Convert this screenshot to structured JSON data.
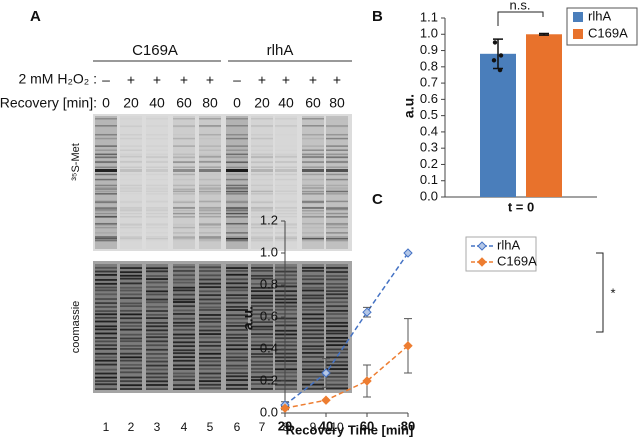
{
  "panel_a": {
    "label": "A",
    "groups": [
      "C169A",
      "rlhA"
    ],
    "treatment_label": "2 mM H₂O₂ :",
    "treatments": [
      "–",
      "+",
      "+",
      "+",
      "+",
      "–",
      "+",
      "+",
      "+",
      "+"
    ],
    "recovery_label": "Recovery [min]:",
    "recovery": [
      "0",
      "20",
      "40",
      "60",
      "80",
      "0",
      "20",
      "40",
      "60",
      "80"
    ],
    "gel_labels": [
      "³⁵S-Met",
      "coomassie"
    ],
    "lanes": [
      "1",
      "2",
      "3",
      "4",
      "5",
      "6",
      "7",
      "8",
      "9",
      "10"
    ]
  },
  "chart_data": [
    {
      "type": "bar",
      "label": "B",
      "ylabel": "a.u.",
      "categories": [
        "t = 0"
      ],
      "ylim": [
        0,
        1.1
      ],
      "yticks": [
        {
          "value": 0,
          "label": "0.0"
        },
        0.1,
        0.2,
        0.3,
        0.4,
        0.5,
        0.6,
        0.7,
        0.8,
        0.9,
        {
          "value": 1,
          "label": "1.0"
        },
        1.1
      ],
      "annotation": "n.s.",
      "legend": "upper right",
      "series": [
        {
          "name": "rlhA",
          "color": "#4a7ebb",
          "values": [
            0.88
          ],
          "errors": [
            0.09
          ],
          "points": [
            0.95,
            0.87,
            0.84,
            0.78
          ]
        },
        {
          "name": "C169A",
          "color": "#e8722c",
          "values": [
            1.0
          ],
          "errors": [
            0.005
          ]
        }
      ]
    },
    {
      "type": "line",
      "label": "C",
      "xlabel": "Recovery Time [min]",
      "ylabel": "a.u.",
      "x": [
        20,
        40,
        60,
        80
      ],
      "xlim": [
        20,
        80
      ],
      "xticks": [
        20,
        40,
        60,
        80
      ],
      "ylim": [
        0,
        1.2
      ],
      "yticks": [
        {
          "value": 0,
          "label": "0.0"
        },
        0.2,
        0.4,
        0.6,
        0.8,
        {
          "value": 1,
          "label": "1.0"
        },
        1.2
      ],
      "annotation": "*",
      "legend": "upper left",
      "series": [
        {
          "name": "rlhA",
          "color": "#4472c4",
          "values": [
            0.05,
            0.25,
            0.63,
            1.0
          ],
          "errors": [
            0.02,
            0.09,
            0.03,
            0.0
          ]
        },
        {
          "name": "C169A",
          "color": "#ed7d31",
          "values": [
            0.03,
            0.08,
            0.2,
            0.42
          ],
          "errors": [
            0.01,
            0.0,
            0.1,
            0.17
          ]
        }
      ]
    }
  ]
}
